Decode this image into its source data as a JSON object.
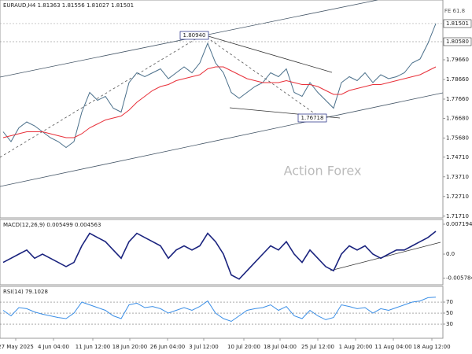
{
  "chart_data": [
    {
      "type": "line",
      "title": "EURAUD,H4 1.81363 1.81556 1.81027 1.81501",
      "annotations": [
        "1.80940",
        "1.76718",
        "FE 61.8",
        "Action Forex"
      ],
      "x": [
        0,
        1,
        2,
        3,
        4,
        5,
        6,
        7,
        8,
        9,
        10,
        11,
        12,
        13,
        14,
        15,
        16,
        17,
        18,
        19,
        20,
        21,
        22,
        23,
        24,
        25,
        26,
        27,
        28,
        29,
        30,
        31,
        32,
        33,
        34,
        35,
        36,
        37,
        38,
        39,
        40,
        41,
        42,
        43,
        44,
        45,
        46,
        47,
        48,
        49,
        50,
        51,
        52,
        53,
        54,
        55
      ],
      "xlim": [
        -0.4,
        55.9
      ],
      "ylim": [
        1.7162,
        1.827
      ],
      "yticks": [
        1.81501,
        {
          "value": 1.8058,
          "label": "1.80580"
        },
        {
          "value": 1.7966,
          "label": "1.79660"
        },
        {
          "value": 1.7866,
          "label": "1.78660"
        },
        {
          "value": 1.7766,
          "label": "1.77660"
        },
        {
          "value": 1.7668,
          "label": "1.76680"
        },
        {
          "value": 1.7568,
          "label": "1.75680"
        },
        {
          "value": 1.7471,
          "label": "1.74710"
        },
        {
          "value": 1.7371,
          "label": "1.73710"
        },
        {
          "value": 1.7271,
          "label": "1.72710"
        },
        {
          "value": 1.7171,
          "label": "1.71710"
        }
      ],
      "series": [
        {
          "name": "EURAUD",
          "color": "#4a6f8a",
          "values": [
            1.76,
            1.755,
            1.762,
            1.765,
            1.763,
            1.76,
            1.757,
            1.755,
            1.752,
            1.755,
            1.77,
            1.78,
            1.776,
            1.778,
            1.772,
            1.77,
            1.785,
            1.79,
            1.788,
            1.79,
            1.792,
            1.787,
            1.79,
            1.793,
            1.79,
            1.795,
            1.805,
            1.795,
            1.79,
            1.78,
            1.777,
            1.78,
            1.783,
            1.785,
            1.79,
            1.788,
            1.792,
            1.78,
            1.778,
            1.785,
            1.78,
            1.776,
            1.772,
            1.785,
            1.788,
            1.786,
            1.79,
            1.785,
            1.789,
            1.787,
            1.788,
            1.79,
            1.795,
            1.797,
            1.805,
            1.815
          ]
        },
        {
          "name": "MA",
          "color": "#e8303a",
          "values": [
            1.757,
            1.758,
            1.759,
            1.76,
            1.76,
            1.76,
            1.759,
            1.758,
            1.757,
            1.757,
            1.759,
            1.762,
            1.764,
            1.766,
            1.767,
            1.768,
            1.771,
            1.775,
            1.778,
            1.781,
            1.783,
            1.784,
            1.786,
            1.787,
            1.788,
            1.789,
            1.792,
            1.793,
            1.793,
            1.791,
            1.789,
            1.787,
            1.786,
            1.785,
            1.785,
            1.785,
            1.786,
            1.785,
            1.784,
            1.784,
            1.783,
            1.781,
            1.779,
            1.779,
            1.781,
            1.782,
            1.783,
            1.784,
            1.784,
            1.785,
            1.786,
            1.787,
            1.788,
            1.789,
            1.791,
            1.793
          ]
        }
      ]
    },
    {
      "type": "line",
      "title": "MACD(12,26,9) 0.005499 0.004563",
      "x": [
        0,
        1,
        2,
        3,
        4,
        5,
        6,
        7,
        8,
        9,
        10,
        11,
        12,
        13,
        14,
        15,
        16,
        17,
        18,
        19,
        20,
        21,
        22,
        23,
        24,
        25,
        26,
        27,
        28,
        29,
        30,
        31,
        32,
        33,
        34,
        35,
        36,
        37,
        38,
        39,
        40,
        41,
        42,
        43,
        44,
        45,
        46,
        47,
        48,
        49,
        50,
        51,
        52,
        53,
        54,
        55
      ],
      "xlim": [
        -0.4,
        55.9
      ],
      "ylim": [
        -0.00737,
        0.00833
      ],
      "yticks": [
        0.007194,
        {
          "value": 0,
          "label": "0.0"
        },
        -0.005784
      ],
      "series": [
        {
          "name": "MACD",
          "color": "#1a237e",
          "values": [
            -0.002,
            -0.001,
            0,
            0.001,
            -0.001,
            0,
            -0.001,
            -0.002,
            -0.003,
            -0.002,
            0.002,
            0.005,
            0.004,
            0.003,
            0.001,
            -0.001,
            0.003,
            0.005,
            0.004,
            0.003,
            0.002,
            -0.001,
            0.001,
            0.002,
            0.001,
            0.002,
            0.005,
            0.003,
            0,
            -0.005,
            -0.006,
            -0.004,
            -0.002,
            0,
            0.002,
            0.001,
            0.003,
            0,
            -0.002,
            0.001,
            -0.001,
            -0.003,
            -0.004,
            0,
            0.002,
            0.001,
            0.002,
            0,
            -0.001,
            0,
            0.001,
            0.001,
            0.002,
            0.003,
            0.004,
            0.0055
          ]
        }
      ]
    },
    {
      "type": "line",
      "title": "RSI(14) 79.1028",
      "x": [
        0,
        1,
        2,
        3,
        4,
        5,
        6,
        7,
        8,
        9,
        10,
        11,
        12,
        13,
        14,
        15,
        16,
        17,
        18,
        19,
        20,
        21,
        22,
        23,
        24,
        25,
        26,
        27,
        28,
        29,
        30,
        31,
        32,
        33,
        34,
        35,
        36,
        37,
        38,
        39,
        40,
        41,
        42,
        43,
        44,
        45,
        46,
        47,
        48,
        49,
        50,
        51,
        52,
        53,
        54,
        55
      ],
      "xlim": [
        -0.4,
        55.9
      ],
      "ylim": [
        4.3,
        98.6
      ],
      "yticks": [
        70,
        50,
        30
      ],
      "grid": true,
      "xticks": [
        {
          "value": 1.6,
          "label": "27 May 2025"
        },
        {
          "value": 6.4,
          "label": "4 Jun 04:00"
        },
        {
          "value": 11.4,
          "label": "11 Jun 12:00"
        },
        {
          "value": 16.1,
          "label": "18 Jun 20:00"
        },
        {
          "value": 20.9,
          "label": "26 Jun 04:00"
        },
        {
          "value": 25.5,
          "label": "3 Jul 12:00"
        },
        {
          "value": 30.6,
          "label": "10 Jul 20:00"
        },
        {
          "value": 35.2,
          "label": "18 Jul 04:00"
        },
        {
          "value": 40,
          "label": "25 Jul 12:00"
        },
        {
          "value": 44.8,
          "label": "1 Aug 20:00"
        },
        {
          "value": 49.6,
          "label": "11 Aug 04:00"
        },
        {
          "value": 54.5,
          "label": "18 Aug 12:00"
        }
      ],
      "series": [
        {
          "name": "RSI",
          "color": "#3a8ee6",
          "values": [
            55,
            45,
            60,
            58,
            52,
            48,
            45,
            42,
            40,
            50,
            70,
            65,
            60,
            55,
            45,
            40,
            65,
            68,
            60,
            62,
            58,
            50,
            55,
            60,
            55,
            62,
            72,
            50,
            40,
            35,
            45,
            55,
            58,
            60,
            65,
            55,
            62,
            45,
            40,
            55,
            45,
            38,
            42,
            65,
            62,
            58,
            60,
            50,
            58,
            55,
            60,
            65,
            70,
            72,
            78,
            79
          ]
        }
      ]
    }
  ]
}
